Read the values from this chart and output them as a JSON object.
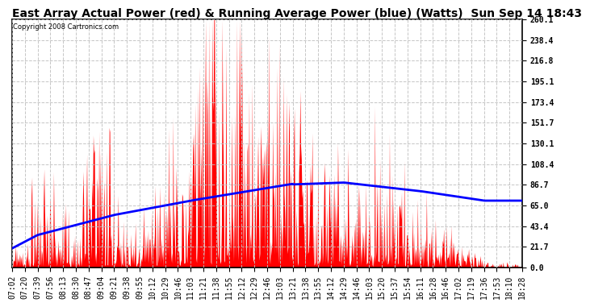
{
  "title": "East Array Actual Power (red) & Running Average Power (blue) (Watts)  Sun Sep 14 18:43",
  "copyright": "Copyright 2008 Cartronics.com",
  "ylim": [
    0.0,
    260.1
  ],
  "yticks": [
    0.0,
    21.7,
    43.4,
    65.0,
    86.7,
    108.4,
    130.1,
    151.7,
    173.4,
    195.1,
    216.8,
    238.4,
    260.1
  ],
  "background_color": "#ffffff",
  "fill_color": "red",
  "line_color": "blue",
  "grid_color": "#c0c0c0",
  "title_fontsize": 10,
  "tick_fontsize": 7,
  "x_times": [
    "07:02",
    "07:20",
    "07:39",
    "07:56",
    "08:13",
    "08:30",
    "08:47",
    "09:04",
    "09:21",
    "09:38",
    "09:55",
    "10:12",
    "10:29",
    "10:46",
    "11:03",
    "11:21",
    "11:38",
    "11:55",
    "12:12",
    "12:29",
    "12:46",
    "13:03",
    "13:21",
    "13:38",
    "13:55",
    "14:12",
    "14:29",
    "14:46",
    "15:03",
    "15:20",
    "15:37",
    "15:54",
    "16:11",
    "16:28",
    "16:46",
    "17:02",
    "17:19",
    "17:36",
    "17:53",
    "18:10",
    "18:28"
  ]
}
